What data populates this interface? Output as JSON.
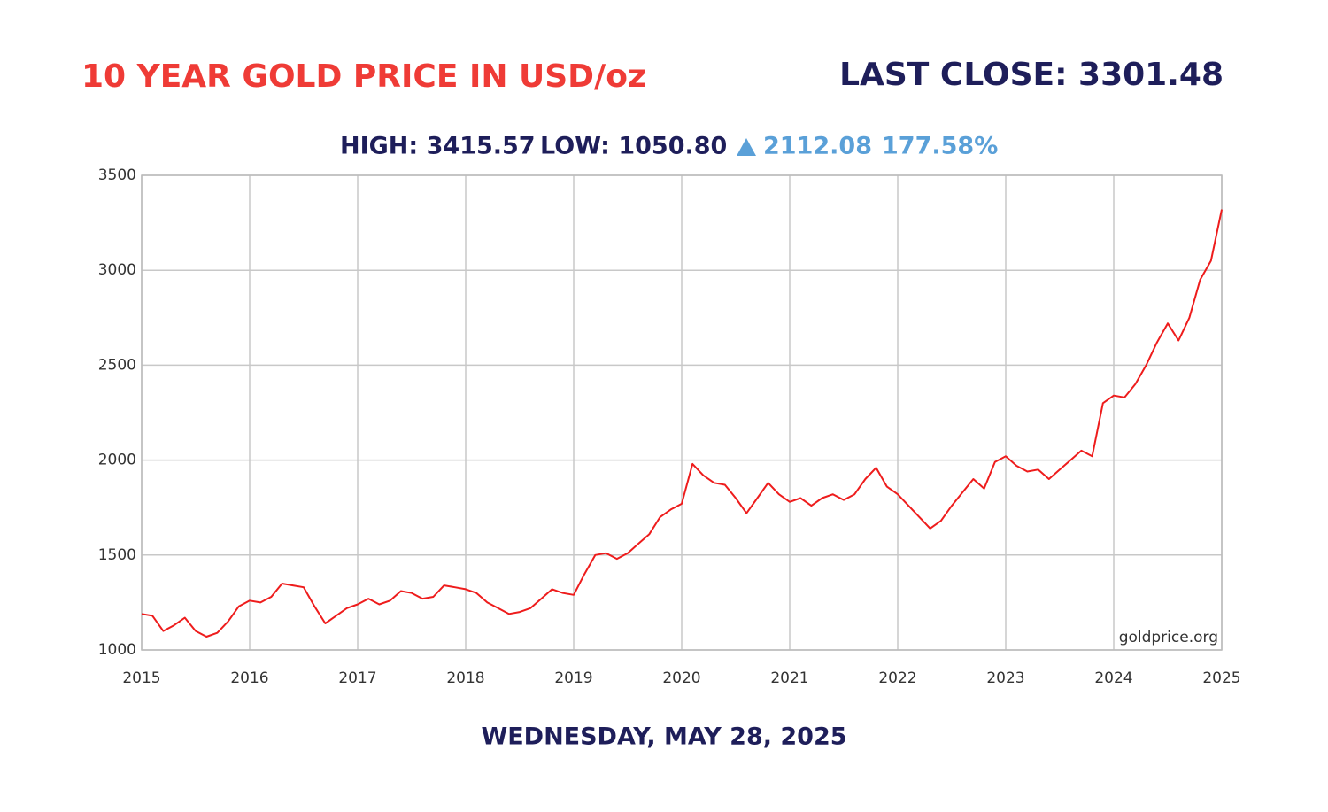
{
  "chart_data": {
    "type": "line",
    "title": "10 YEAR GOLD PRICE IN USD/oz",
    "last_close": "LAST CLOSE: 3301.48",
    "high": "HIGH: 3415.57",
    "low": "LOW: 1050.80",
    "change": "2112.08",
    "change_percent": "177.58%",
    "date": "WEDNESDAY, MAY 28, 2025",
    "watermark": "goldprice.org",
    "color": "#ee1c1c",
    "grid": true,
    "xlim": [
      2015,
      2025
    ],
    "xticks": [
      2015,
      2016,
      2017,
      2018,
      2019,
      2020,
      2021,
      2022,
      2023,
      2024,
      2025
    ],
    "ylim": [
      1000,
      3500
    ],
    "yticks": [
      1000,
      1500,
      2000,
      2500,
      3000,
      3500
    ],
    "x": [
      2015.0,
      2015.1,
      2015.2,
      2015.3,
      2015.4,
      2015.5,
      2015.6,
      2015.7,
      2015.8,
      2015.9,
      2016.0,
      2016.1,
      2016.2,
      2016.3,
      2016.4,
      2016.5,
      2016.6,
      2016.7,
      2016.8,
      2016.9,
      2017.0,
      2017.1,
      2017.2,
      2017.3,
      2017.4,
      2017.5,
      2017.6,
      2017.7,
      2017.8,
      2017.9,
      2018.0,
      2018.1,
      2018.2,
      2018.3,
      2018.4,
      2018.5,
      2018.6,
      2018.7,
      2018.8,
      2018.9,
      2019.0,
      2019.1,
      2019.2,
      2019.3,
      2019.4,
      2019.5,
      2019.6,
      2019.7,
      2019.8,
      2019.9,
      2020.0,
      2020.1,
      2020.2,
      2020.3,
      2020.4,
      2020.5,
      2020.6,
      2020.7,
      2020.8,
      2020.9,
      2021.0,
      2021.1,
      2021.2,
      2021.3,
      2021.4,
      2021.5,
      2021.6,
      2021.7,
      2021.8,
      2021.9,
      2022.0,
      2022.1,
      2022.2,
      2022.3,
      2022.4,
      2022.5,
      2022.6,
      2022.7,
      2022.8,
      2022.9,
      2023.0,
      2023.1,
      2023.2,
      2023.3,
      2023.4,
      2023.5,
      2023.6,
      2023.7,
      2023.8,
      2023.9,
      2024.0,
      2024.1,
      2024.2,
      2024.3,
      2024.4,
      2024.5,
      2024.6,
      2024.7,
      2024.8,
      2024.9,
      2025.0
    ],
    "values": [
      1190,
      1180,
      1100,
      1130,
      1170,
      1100,
      1070,
      1090,
      1150,
      1230,
      1260,
      1250,
      1280,
      1350,
      1340,
      1330,
      1230,
      1140,
      1180,
      1220,
      1240,
      1270,
      1240,
      1260,
      1310,
      1300,
      1270,
      1280,
      1340,
      1330,
      1320,
      1300,
      1250,
      1220,
      1190,
      1200,
      1220,
      1270,
      1320,
      1300,
      1290,
      1400,
      1500,
      1510,
      1480,
      1510,
      1560,
      1610,
      1700,
      1740,
      1770,
      1980,
      1920,
      1880,
      1870,
      1800,
      1720,
      1800,
      1880,
      1820,
      1780,
      1800,
      1760,
      1800,
      1820,
      1790,
      1820,
      1900,
      1960,
      1860,
      1820,
      1760,
      1700,
      1640,
      1680,
      1760,
      1830,
      1900,
      1850,
      1990,
      2020,
      1970,
      1940,
      1950,
      1900,
      1950,
      2000,
      2050,
      2020,
      2300,
      2340,
      2330,
      2400,
      2500,
      2620,
      2720,
      2630,
      2750,
      2950,
      3050,
      3320
    ]
  }
}
